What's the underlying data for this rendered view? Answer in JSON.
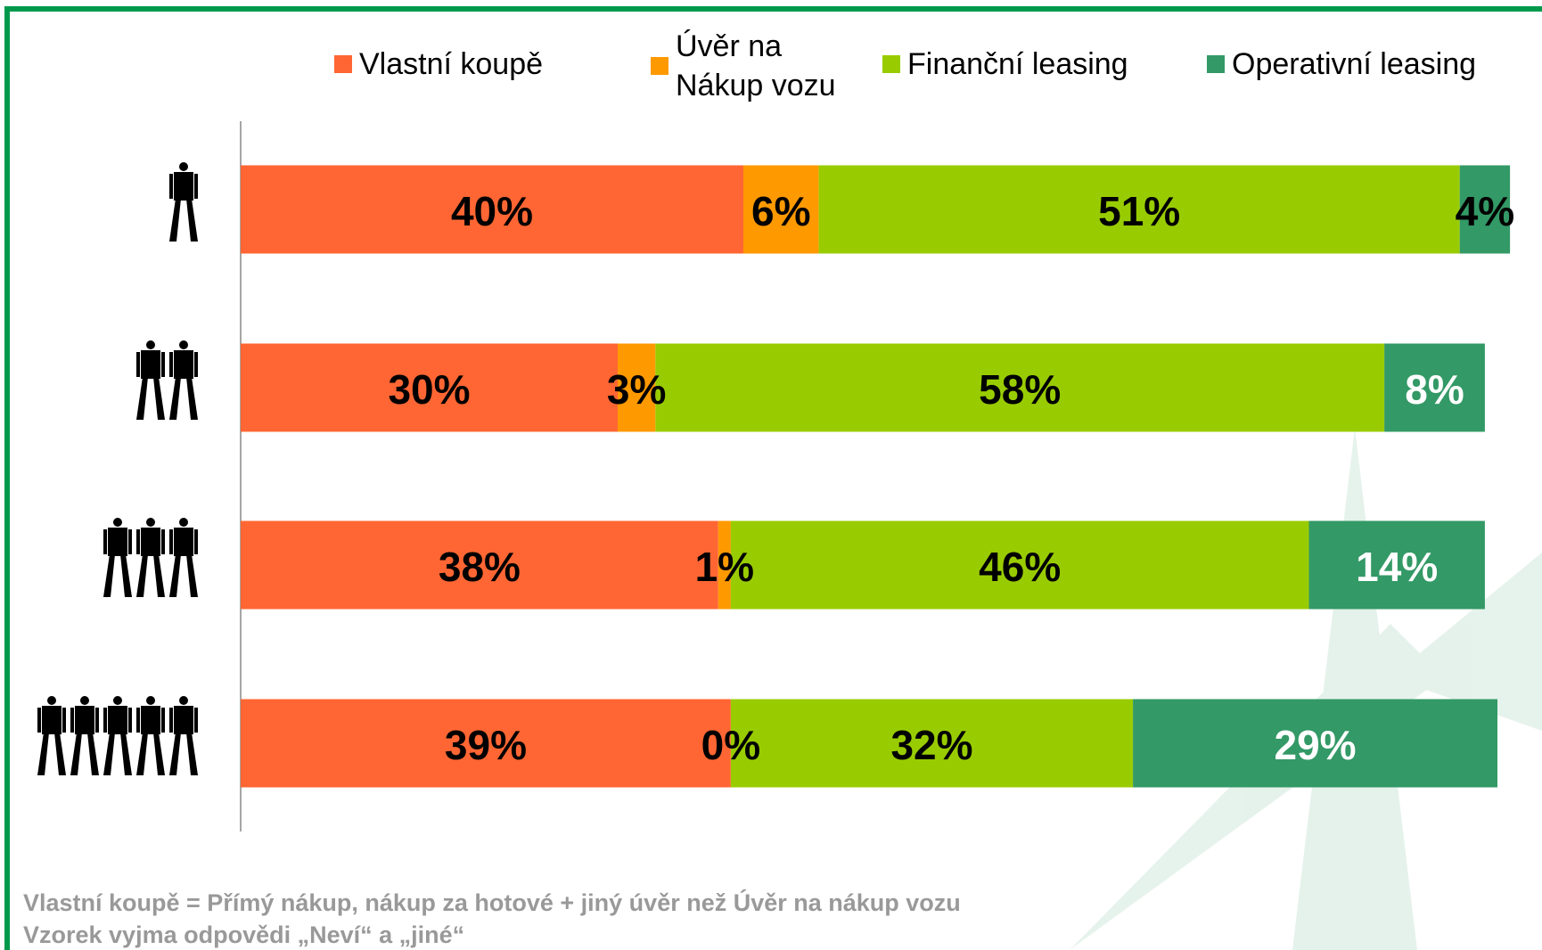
{
  "chart_data": {
    "type": "stacked-bar-horizontal",
    "categories": [
      null,
      null,
      null,
      null
    ],
    "series": [
      {
        "name": "Vlastní koupě",
        "color": "#ff6633",
        "values": [
          40,
          30,
          38,
          39
        ],
        "value_labels": [
          "40%",
          "30%",
          "38%",
          "39%"
        ]
      },
      {
        "name": "Úvěr na Nákup vozu",
        "color": "#ff9900",
        "values": [
          6,
          3,
          1,
          0
        ],
        "value_labels": [
          "6%",
          "3%",
          "1%",
          "0%"
        ]
      },
      {
        "name": "Finanční leasing",
        "color": "#99cc00",
        "values": [
          51,
          58,
          46,
          32
        ],
        "value_labels": [
          "51%",
          "58%",
          "46%",
          "32%"
        ]
      },
      {
        "name": "Operativní leasing",
        "color": "#339966",
        "values": [
          4,
          8,
          14,
          29
        ],
        "value_labels": [
          "4%",
          "8%",
          "14%",
          "29%"
        ]
      }
    ],
    "xlim": [
      0,
      100
    ],
    "legend": "top",
    "notes": [
      "Vlastní koupě = Přímý nákup, nákup za hotové + jiný úvěr než Úvěr na nákup vozu",
      "Vzorek vyjma odpovědi „Neví“ a „jiné“"
    ]
  }
}
